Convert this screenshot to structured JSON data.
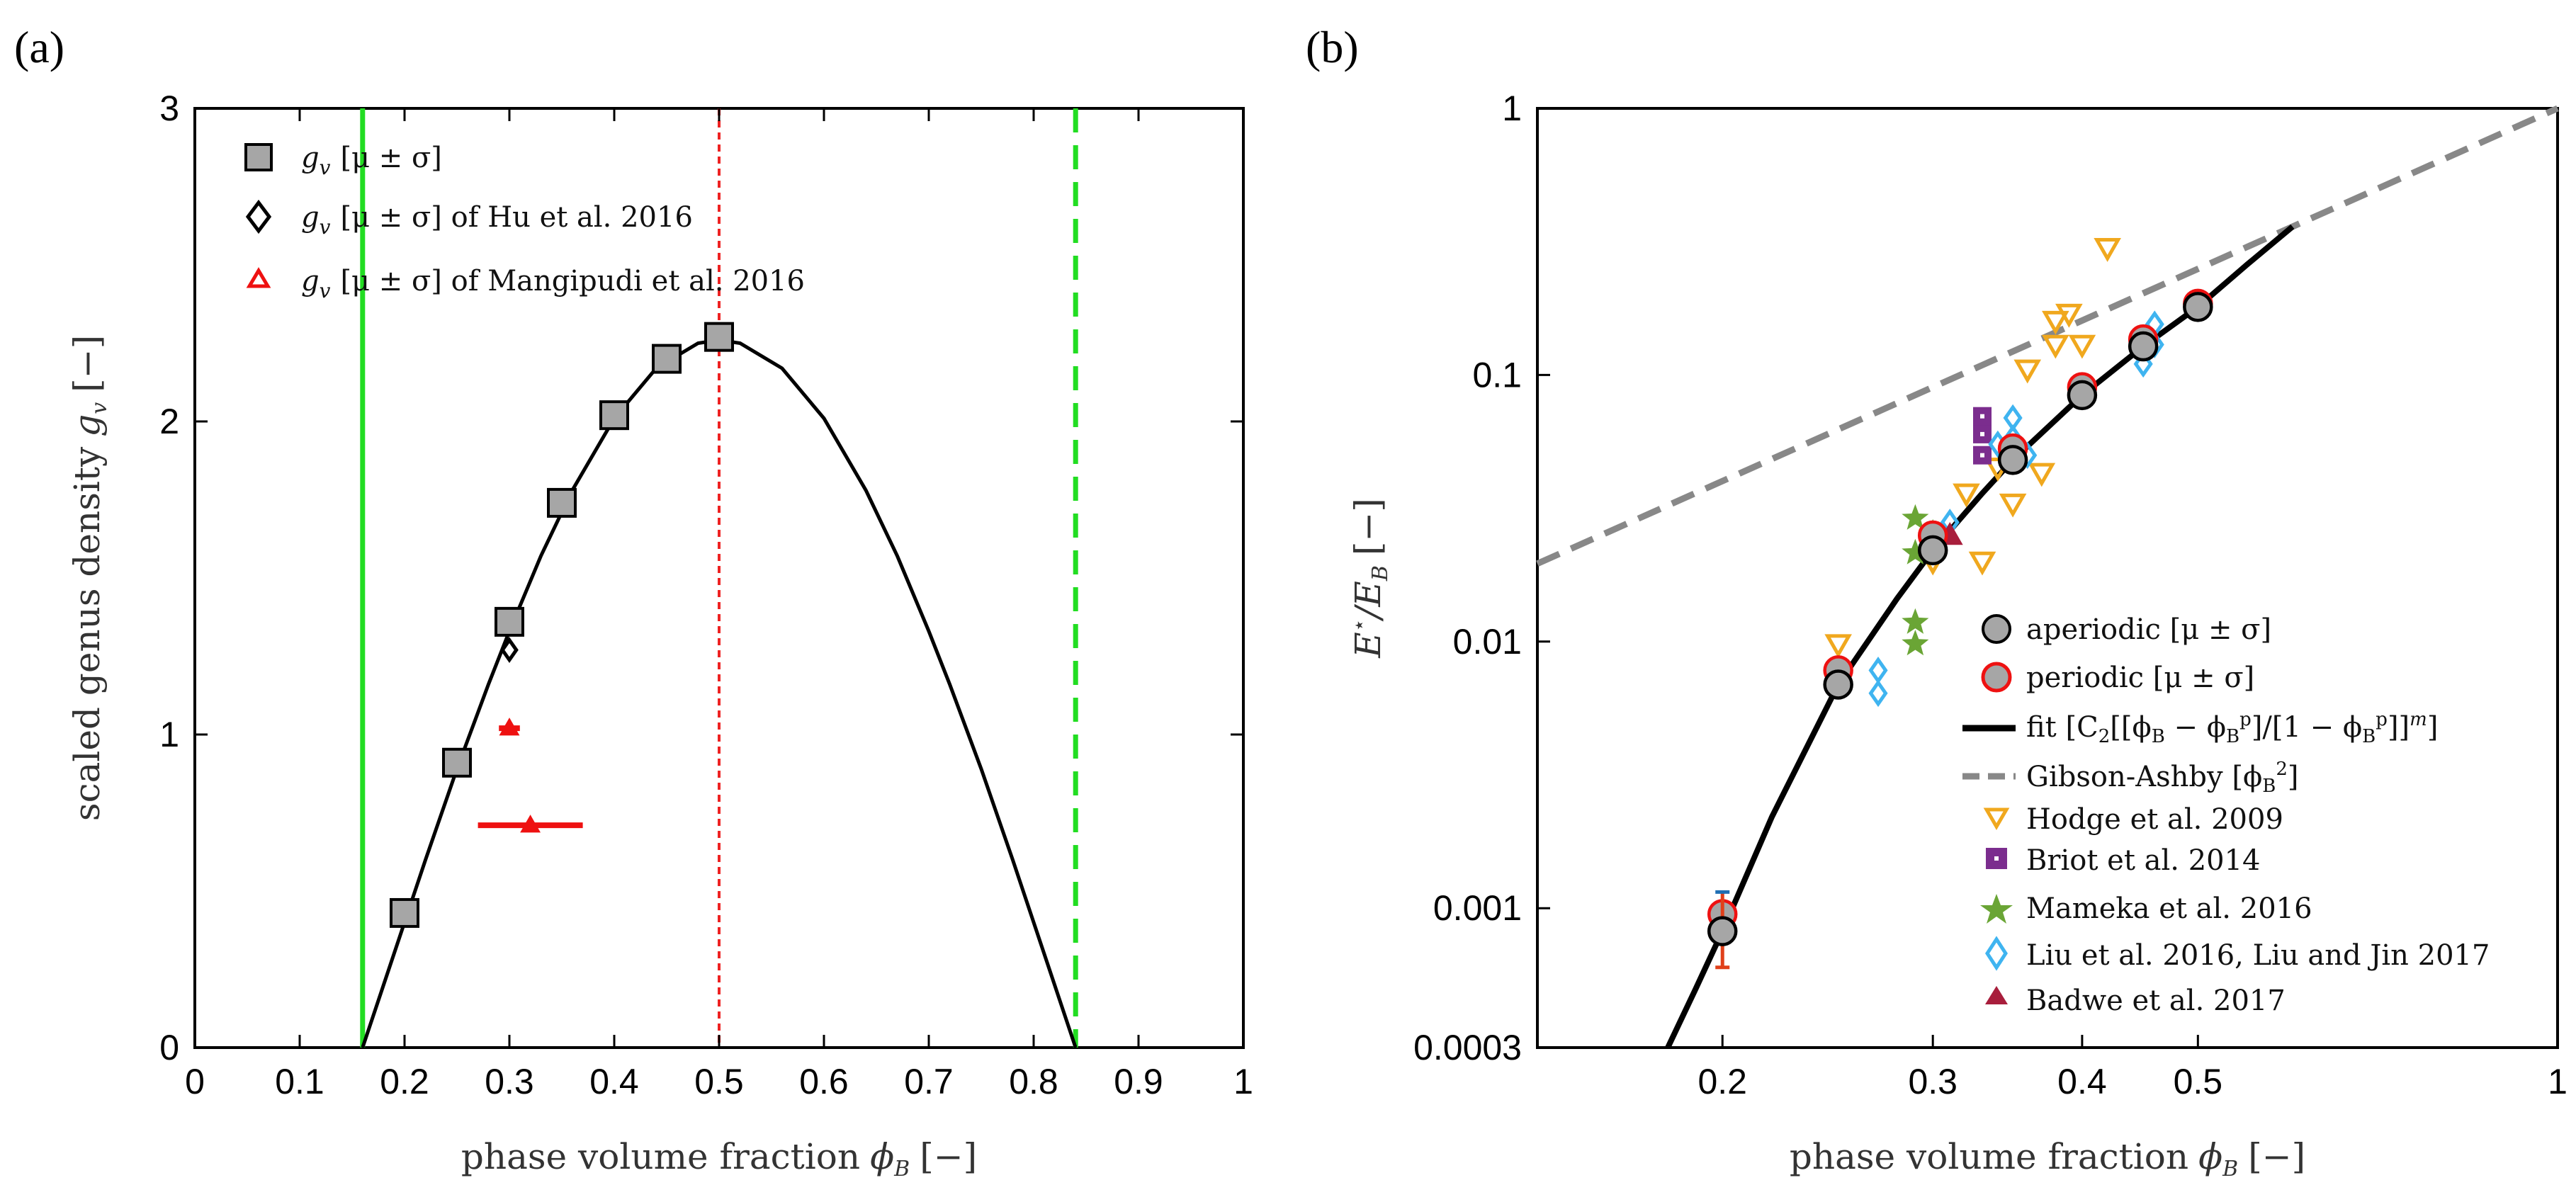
{
  "chart_data": [
    {
      "panel": "(a)",
      "type": "scatter",
      "title": "",
      "xlabel_text": "phase volume fraction",
      "xlabel_symbol": "ϕ",
      "xlabel_sub": "B",
      "xlabel_unit": "[−]",
      "ylabel_text": "scaled genus density",
      "ylabel_symbol": "g",
      "ylabel_sub": "v",
      "ylabel_unit": "[−]",
      "xlim": [
        0,
        1
      ],
      "ylim": [
        0,
        3
      ],
      "xticks": [
        0,
        0.1,
        0.2,
        0.3,
        0.4,
        0.5,
        0.6,
        0.7,
        0.8,
        0.9,
        1
      ],
      "xtick_labels": [
        "0",
        "0.1",
        "0.2",
        "0.3",
        "0.4",
        "0.5",
        "0.6",
        "0.7",
        "0.8",
        "0.9",
        "1"
      ],
      "yticks": [
        0,
        1,
        2,
        3
      ],
      "ytick_labels": [
        "0",
        "1",
        "2",
        "3"
      ],
      "vertical_lines": [
        {
          "x": 0.16,
          "color": "#22dd22",
          "style": "solid"
        },
        {
          "x": 0.5,
          "color": "#ee2222",
          "style": "dotted"
        },
        {
          "x": 0.84,
          "color": "#22dd22",
          "style": "dashed"
        }
      ],
      "series": [
        {
          "name": "g_v [μ ± σ]",
          "legend": "[μ ± σ]",
          "marker": "square",
          "color": "#a6a6a6",
          "x": [
            0.2,
            0.25,
            0.3,
            0.35,
            0.4,
            0.45,
            0.5
          ],
          "y": [
            0.43,
            0.91,
            1.36,
            1.74,
            2.02,
            2.2,
            2.27
          ]
        },
        {
          "name": "g_v [μ ± σ] of Hu et al. 2016",
          "legend": "[μ ± σ] of Hu et al. 2016",
          "marker": "diamond",
          "color": "#000000",
          "x": [
            0.3
          ],
          "y": [
            1.27
          ]
        },
        {
          "name": "g_v [μ ± σ] of Mangipudi et al. 2016",
          "legend": "[μ ± σ] of Mangipudi et al. 2016",
          "marker": "triangle",
          "color": "#ee1111",
          "x": [
            0.3,
            0.32
          ],
          "y": [
            1.02,
            0.71
          ],
          "xerr": [
            0.01,
            0.05
          ]
        }
      ],
      "fit_curve": {
        "name": "fit",
        "color": "#000000",
        "x": [
          0.16,
          0.18,
          0.2,
          0.22,
          0.25,
          0.28,
          0.3,
          0.33,
          0.36,
          0.4,
          0.44,
          0.48,
          0.5,
          0.52,
          0.56,
          0.6,
          0.64,
          0.67,
          0.7,
          0.72,
          0.75,
          0.78,
          0.8,
          0.82,
          0.84
        ],
        "y": [
          0.0,
          0.2,
          0.4,
          0.6,
          0.89,
          1.16,
          1.33,
          1.57,
          1.78,
          2.01,
          2.17,
          2.25,
          2.26,
          2.25,
          2.17,
          2.01,
          1.78,
          1.57,
          1.33,
          1.16,
          0.89,
          0.6,
          0.4,
          0.2,
          0.0
        ]
      }
    },
    {
      "panel": "(b)",
      "type": "scatter",
      "xscale": "log",
      "yscale": "log",
      "title": "",
      "xlabel_text": "phase volume fraction",
      "xlabel_symbol": "ϕ",
      "xlabel_sub": "B",
      "xlabel_unit": "[−]",
      "ylabel_main": "E",
      "ylabel_sup": "⋆",
      "ylabel_mid": "/E",
      "ylabel_sub": "B",
      "ylabel_unit": "[−]",
      "xlim": [
        0.14,
        1
      ],
      "ylim": [
        0.0003,
        1
      ],
      "xticks": [
        0.2,
        0.3,
        0.4,
        0.5,
        1
      ],
      "xtick_labels": [
        "0.2",
        "0.3",
        "0.4",
        "0.5",
        "1"
      ],
      "yticks": [
        0.0003,
        0.001,
        0.01,
        0.1,
        1
      ],
      "ytick_labels": [
        "0.0003",
        "0.001",
        "0.01",
        "0.1",
        "1"
      ],
      "series": [
        {
          "name": "aperiodic [μ ± σ]",
          "legend": "aperiodic [μ ± σ]",
          "marker": "circle",
          "color": "#a6a6a6",
          "edge": "#000000",
          "x": [
            0.2,
            0.25,
            0.3,
            0.35,
            0.4,
            0.45,
            0.5
          ],
          "y": [
            0.00082,
            0.0069,
            0.022,
            0.048,
            0.084,
            0.128,
            0.18
          ],
          "yerr_lo": [
            0.0006,
            0.0065,
            0.021,
            0.046,
            0.081,
            0.124,
            0.176
          ],
          "yerr_hi": [
            0.00115,
            0.0073,
            0.023,
            0.05,
            0.087,
            0.132,
            0.184
          ]
        },
        {
          "name": "periodic [μ ± σ]",
          "legend": "periodic [μ ± σ]",
          "marker": "circle",
          "color": "#a6a6a6",
          "edge": "#ee1111",
          "x": [
            0.2,
            0.25,
            0.3,
            0.35,
            0.4,
            0.45,
            0.5
          ],
          "y": [
            0.00095,
            0.0078,
            0.025,
            0.053,
            0.09,
            0.136,
            0.185
          ]
        },
        {
          "name": "Hodge et al. 2009",
          "legend": "Hodge et al. 2009",
          "marker": "triangle-down",
          "color": "#f0a81e",
          "x": [
            0.25,
            0.3,
            0.32,
            0.33,
            0.34,
            0.35,
            0.36,
            0.37,
            0.38,
            0.38,
            0.39,
            0.4,
            0.42,
            0.45
          ],
          "y": [
            0.0098,
            0.02,
            0.036,
            0.02,
            0.045,
            0.033,
            0.105,
            0.043,
            0.13,
            0.16,
            0.17,
            0.13,
            0.3,
            0.13
          ]
        },
        {
          "name": "Briot et al. 2014",
          "legend": "Briot et al. 2014",
          "marker": "square-dot",
          "color": "#7b2d8e",
          "x": [
            0.33,
            0.33,
            0.33
          ],
          "y": [
            0.05,
            0.06,
            0.07
          ]
        },
        {
          "name": "Mameka et al. 2016",
          "legend": "Mameka et al. 2016",
          "marker": "star",
          "color": "#6aa535",
          "x": [
            0.29,
            0.29,
            0.29,
            0.29,
            0.3
          ],
          "y": [
            0.0098,
            0.0118,
            0.0215,
            0.029,
            0.0255
          ]
        },
        {
          "name": "Liu et al. 2016, Liu and Jin 2017",
          "legend": "Liu et al. 2016, Liu and Jin 2017",
          "marker": "diamond",
          "color": "#3fb4f0",
          "x": [
            0.27,
            0.27,
            0.31,
            0.34,
            0.35,
            0.35,
            0.36,
            0.45,
            0.46,
            0.46
          ],
          "y": [
            0.0064,
            0.0078,
            0.028,
            0.055,
            0.058,
            0.069,
            0.05,
            0.11,
            0.13,
            0.155
          ]
        },
        {
          "name": "Badwe et al. 2017",
          "legend": "Badwe et al. 2017",
          "marker": "triangle",
          "color": "#a81e3c",
          "x": [
            0.31
          ],
          "y": [
            0.025
          ]
        }
      ],
      "fit_curve": {
        "name": "fit [C2[[ϕB − ϕB^p]/[1 − ϕB^p]]^m]",
        "legend_prefix": "fit [C",
        "legend_sub1": "2",
        "legend_mid": "[[ϕ",
        "legend_tail": "]",
        "color": "#000000",
        "x": [
          0.18,
          0.19,
          0.2,
          0.22,
          0.25,
          0.28,
          0.3,
          0.33,
          0.35,
          0.4,
          0.45,
          0.5,
          0.55,
          0.6
        ],
        "y": [
          0.0003,
          0.0005,
          0.00082,
          0.0022,
          0.0069,
          0.0145,
          0.022,
          0.036,
          0.048,
          0.084,
          0.128,
          0.18,
          0.26,
          0.36
        ]
      },
      "reference_line": {
        "name": "Gibson-Ashby [ϕB²]",
        "legend": "Gibson-Ashby [ϕ",
        "color": "#888888",
        "style": "dashed",
        "x": [
          0.14,
          1
        ],
        "y": [
          0.0196,
          1
        ]
      }
    }
  ]
}
